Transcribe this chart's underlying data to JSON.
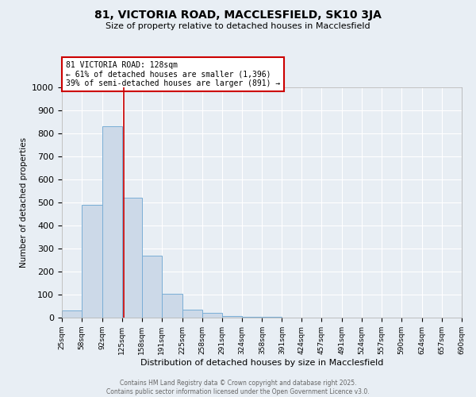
{
  "title1": "81, VICTORIA ROAD, MACCLESFIELD, SK10 3JA",
  "title2": "Size of property relative to detached houses in Macclesfield",
  "xlabel": "Distribution of detached houses by size in Macclesfield",
  "ylabel": "Number of detached properties",
  "bin_edges": [
    25,
    58,
    92,
    125,
    158,
    191,
    225,
    258,
    291,
    324,
    358,
    391,
    424,
    457,
    491,
    524,
    557,
    590,
    624,
    657,
    690
  ],
  "bar_heights": [
    30,
    490,
    830,
    520,
    270,
    105,
    35,
    20,
    8,
    5,
    2,
    0,
    0,
    0,
    0,
    0,
    0,
    0,
    0,
    0
  ],
  "bar_color": "#ccd9e8",
  "bar_edgecolor": "#7aaed6",
  "property_size": 128,
  "property_line_color": "#cc0000",
  "annotation_text": "81 VICTORIA ROAD: 128sqm\n← 61% of detached houses are smaller (1,396)\n39% of semi-detached houses are larger (891) →",
  "annotation_box_color": "#ffffff",
  "annotation_box_edgecolor": "#cc0000",
  "ylim": [
    0,
    1000
  ],
  "yticks": [
    0,
    100,
    200,
    300,
    400,
    500,
    600,
    700,
    800,
    900,
    1000
  ],
  "bg_color": "#e8eef4",
  "grid_color": "#ffffff",
  "footer_text": "Contains HM Land Registry data © Crown copyright and database right 2025.\nContains public sector information licensed under the Open Government Licence v3.0.",
  "tick_labels": [
    "25sqm",
    "58sqm",
    "92sqm",
    "125sqm",
    "158sqm",
    "191sqm",
    "225sqm",
    "258sqm",
    "291sqm",
    "324sqm",
    "358sqm",
    "391sqm",
    "424sqm",
    "457sqm",
    "491sqm",
    "524sqm",
    "557sqm",
    "590sqm",
    "624sqm",
    "657sqm",
    "690sqm"
  ]
}
